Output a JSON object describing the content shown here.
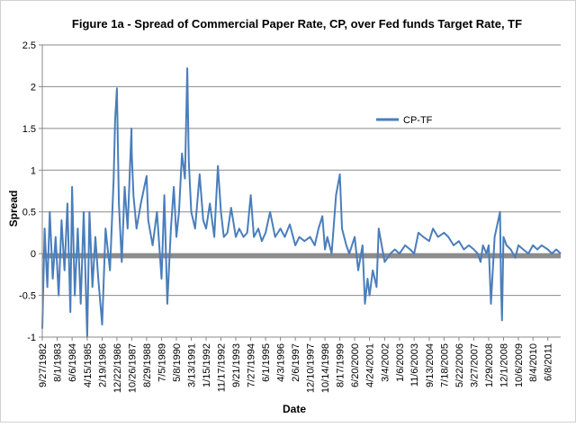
{
  "chart_data": {
    "type": "line",
    "title": "Figure 1a - Spread of Commercial Paper Rate, CP, over Fed funds Target Rate, TF",
    "xlabel": "Date",
    "ylabel": "Spread",
    "ylim": [
      -1,
      2.5
    ],
    "y_ticks": [
      "-1",
      "-0.5",
      "0",
      "0.5",
      "1",
      "1.5",
      "2",
      "2.5"
    ],
    "y_tick_values": [
      -1,
      -0.5,
      0,
      0.5,
      1,
      1.5,
      2,
      2.5
    ],
    "x_tick_labels": [
      "9/27/1982",
      "8/1/1983",
      "6/6/1984",
      "4/15/1985",
      "2/19/1986",
      "12/22/1986",
      "10/26/1987",
      "8/29/1988",
      "7/5/1989",
      "5/8/1990",
      "3/13/1991",
      "1/15/1992",
      "11/17/1992",
      "9/21/1993",
      "7/27/1994",
      "6/1/1995",
      "4/3/1996",
      "2/6/1997",
      "12/10/1997",
      "10/14/1998",
      "8/17/1999",
      "6/20/2000",
      "4/24/2001",
      "3/4/2002",
      "1/6/2003",
      "11/6/2003",
      "9/13/2004",
      "7/18/2005",
      "5/22/2006",
      "3/27/2007",
      "1/29/2008",
      "12/1/2008",
      "10/6/2009",
      "8/4/2010",
      "6/8/2011"
    ],
    "visible_x_tick_labels": [
      "9/27/1982",
      "8/1/1983",
      "6/6/1984",
      "4/15/1985",
      "2/19/1986",
      "12/22/1986",
      "10/26/1987",
      "8/29/1988",
      "7/5/1989",
      "5/8/1990",
      "3/13/1991",
      "1/15/1992",
      "11/17/1992",
      "9/21/1993",
      "7/27/1994",
      "6/1/1995",
      "4/3/1996",
      "2/6/1997",
      "12/10/1997",
      "10/14/1998",
      "8/17/1999",
      "6/20/2000",
      "4/24/2001",
      "3/4/2002",
      "1/6/2003",
      "11/6/2003",
      "9/13/2004",
      "7/18/2005",
      "5/22/2006",
      "3/27/2007",
      "1/29/2008",
      "12/1/2008",
      "10/6/2009",
      "8/4/2010",
      "6/8/2011"
    ],
    "legend": {
      "position": "right",
      "entries": [
        "CP-TF"
      ]
    },
    "grid": {
      "horizontal": true,
      "vertical": false
    },
    "series": [
      {
        "name": "CP-TF",
        "color": "#4a7ebb",
        "x": [
          "1982-09-27",
          "1982-11-15",
          "1983-01-10",
          "1983-03-01",
          "1983-05-01",
          "1983-07-01",
          "1983-09-01",
          "1983-11-01",
          "1984-01-01",
          "1984-03-01",
          "1984-05-01",
          "1984-06-06",
          "1984-08-01",
          "1984-10-01",
          "1984-12-01",
          "1985-02-01",
          "1985-04-15",
          "1985-06-01",
          "1985-08-01",
          "1985-10-01",
          "1985-12-01",
          "1986-02-19",
          "1986-05-01",
          "1986-08-01",
          "1986-10-15",
          "1986-11-15",
          "1986-12-22",
          "1987-02-01",
          "1987-04-01",
          "1987-06-01",
          "1987-08-01",
          "1987-10-20",
          "1987-10-26",
          "1987-12-01",
          "1988-02-01",
          "1988-05-01",
          "1988-08-29",
          "1988-10-01",
          "1989-01-01",
          "1989-04-01",
          "1989-07-05",
          "1989-09-01",
          "1989-11-01",
          "1990-01-15",
          "1990-03-15",
          "1990-05-08",
          "1990-07-01",
          "1990-09-01",
          "1990-11-01",
          "1990-12-20",
          "1991-01-20",
          "1991-03-13",
          "1991-06-01",
          "1991-09-01",
          "1991-11-15",
          "1992-01-15",
          "1992-04-01",
          "1992-07-01",
          "1992-09-15",
          "1992-11-17",
          "1993-01-15",
          "1993-04-01",
          "1993-06-15",
          "1993-09-21",
          "1993-12-01",
          "1994-03-01",
          "1994-05-15",
          "1994-07-27",
          "1994-10-01",
          "1995-01-01",
          "1995-03-15",
          "1995-06-01",
          "1995-09-01",
          "1995-12-15",
          "1996-04-03",
          "1996-07-01",
          "1996-10-15",
          "1997-02-06",
          "1997-05-01",
          "1997-08-15",
          "1997-12-10",
          "1998-03-15",
          "1998-06-01",
          "1998-08-20",
          "1998-10-14",
          "1998-12-01",
          "1999-03-01",
          "1999-06-01",
          "1999-08-17",
          "1999-10-01",
          "1999-12-31",
          "2000-03-01",
          "2000-06-20",
          "2000-09-01",
          "2000-12-01",
          "2001-01-20",
          "2001-03-15",
          "2001-04-24",
          "2001-07-01",
          "2001-09-17",
          "2001-11-01",
          "2002-03-04",
          "2002-07-01",
          "2002-10-01",
          "2003-01-06",
          "2003-05-01",
          "2003-08-15",
          "2003-11-06",
          "2004-02-01",
          "2004-05-15",
          "2004-09-13",
          "2004-12-01",
          "2005-03-15",
          "2005-07-18",
          "2005-10-15",
          "2006-02-01",
          "2006-05-22",
          "2006-09-01",
          "2006-12-15",
          "2007-03-27",
          "2007-06-15",
          "2007-08-15",
          "2007-10-01",
          "2007-12-15",
          "2008-01-29",
          "2008-03-15",
          "2008-06-01",
          "2008-09-20",
          "2008-10-10",
          "2008-11-01",
          "2008-12-01",
          "2009-02-01",
          "2009-05-01",
          "2009-08-01",
          "2009-10-06",
          "2010-01-15",
          "2010-05-01",
          "2010-08-04",
          "2010-11-01",
          "2011-02-01",
          "2011-06-08",
          "2011-09-01",
          "2011-12-01",
          "2012-03-01"
        ],
        "values": [
          -0.9,
          0.3,
          -0.4,
          0.5,
          -0.3,
          0.2,
          -0.5,
          0.4,
          -0.2,
          0.6,
          -0.7,
          0.8,
          -0.5,
          0.3,
          -0.6,
          0.5,
          -1.0,
          0.5,
          -0.4,
          0.2,
          -0.3,
          -0.85,
          0.3,
          -0.2,
          0.9,
          1.6,
          1.98,
          0.6,
          -0.1,
          0.8,
          0.3,
          1.5,
          1.2,
          0.7,
          0.3,
          0.6,
          0.93,
          0.4,
          0.1,
          0.5,
          -0.3,
          0.7,
          -0.6,
          0.3,
          0.8,
          0.2,
          0.5,
          1.2,
          0.9,
          2.22,
          1.1,
          0.5,
          0.3,
          0.95,
          0.4,
          0.3,
          0.6,
          0.2,
          1.05,
          0.5,
          0.2,
          0.25,
          0.55,
          0.2,
          0.3,
          0.2,
          0.25,
          0.7,
          0.2,
          0.3,
          0.15,
          0.25,
          0.5,
          0.2,
          0.3,
          0.2,
          0.35,
          0.1,
          0.2,
          0.15,
          0.2,
          0.1,
          0.3,
          0.45,
          0.05,
          0.2,
          0.0,
          0.7,
          0.95,
          0.3,
          0.1,
          0.0,
          0.2,
          -0.2,
          0.1,
          -0.6,
          -0.3,
          -0.5,
          -0.2,
          -0.4,
          0.3,
          -0.1,
          0.0,
          0.05,
          0.0,
          0.1,
          0.05,
          0.0,
          0.25,
          0.2,
          0.15,
          0.3,
          0.2,
          0.25,
          0.2,
          0.1,
          0.15,
          0.05,
          0.1,
          0.05,
          0.0,
          -0.1,
          0.1,
          0.0,
          0.1,
          -0.6,
          0.2,
          0.5,
          -0.4,
          -0.8,
          0.2,
          0.1,
          0.05,
          -0.05,
          0.1,
          0.05,
          0.0,
          0.1,
          0.05,
          0.1,
          0.05,
          0.0,
          0.05,
          0.0
        ]
      },
      {
        "name": "",
        "color": "#8c8c8c",
        "x": [
          "1982-09-27",
          "2012-03-01"
        ],
        "values": [
          -0.03,
          -0.03
        ]
      }
    ]
  }
}
